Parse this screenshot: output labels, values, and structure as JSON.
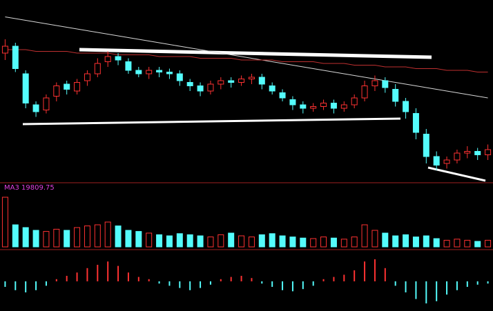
{
  "chart_data": {
    "type": "candlestick",
    "open": [
      74,
      78,
      62,
      44,
      41,
      49,
      56,
      52,
      58,
      62,
      69,
      72,
      69,
      64,
      62,
      64,
      63,
      62,
      57,
      55,
      52,
      56,
      58,
      57,
      59,
      60,
      55,
      51,
      47,
      44,
      42,
      43,
      45,
      42,
      44,
      48,
      55,
      58,
      53,
      46,
      39,
      27,
      14,
      10,
      12,
      16,
      17,
      15
    ],
    "close": [
      78,
      65,
      45,
      40,
      48,
      55,
      53,
      57,
      62,
      68,
      72,
      70,
      64,
      62,
      64,
      63,
      62,
      58,
      55,
      52,
      56,
      58,
      57,
      59,
      60,
      56,
      52,
      48,
      44,
      42,
      43,
      45,
      42,
      44,
      48,
      55,
      58,
      54,
      46,
      40,
      28,
      14,
      9,
      12,
      16,
      17,
      15,
      18
    ],
    "high": [
      82,
      80,
      64,
      46,
      50,
      57,
      58,
      59,
      64,
      71,
      75,
      74,
      71,
      66,
      66,
      66,
      65,
      64,
      59,
      57,
      58,
      60,
      60,
      61,
      62,
      62,
      57,
      53,
      49,
      46,
      45,
      47,
      47,
      46,
      50,
      58,
      61,
      60,
      56,
      48,
      42,
      30,
      17,
      14,
      18,
      20,
      19,
      21
    ],
    "low": [
      70,
      63,
      42,
      37,
      39,
      46,
      50,
      50,
      55,
      60,
      66,
      67,
      62,
      60,
      59,
      60,
      59,
      55,
      52,
      49,
      50,
      53,
      54,
      55,
      56,
      53,
      50,
      46,
      41,
      39,
      40,
      41,
      39,
      40,
      42,
      46,
      52,
      51,
      43,
      36,
      24,
      10,
      6,
      7,
      10,
      13,
      12,
      12
    ],
    "ylim": [
      0,
      100
    ],
    "up_color": "#ff3232",
    "down_color": "#54fcfc",
    "series": [
      {
        "color": "#d8d8d8",
        "values": [
          95,
          94,
          93,
          92,
          91,
          90,
          89,
          88,
          87,
          86,
          85,
          84,
          83,
          82,
          81,
          80,
          79,
          78,
          77,
          76,
          75,
          74,
          73,
          72,
          71,
          70,
          69,
          68,
          67,
          66,
          65,
          64,
          63,
          62,
          61,
          60,
          59,
          58,
          57,
          56,
          55,
          54,
          53,
          52,
          51,
          50,
          49,
          48
        ]
      },
      {
        "color": "#c03030",
        "values": [
          76,
          76,
          76,
          75,
          75,
          75,
          75,
          74,
          74,
          74,
          74,
          73,
          73,
          73,
          73,
          72,
          72,
          72,
          72,
          71,
          71,
          71,
          71,
          70,
          70,
          70,
          70,
          69,
          69,
          69,
          69,
          68,
          68,
          68,
          67,
          67,
          67,
          66,
          66,
          66,
          65,
          65,
          65,
          64,
          64,
          64,
          63,
          63
        ]
      }
    ],
    "volume_label": "MA3 19809.75",
    "volume": [
      90,
      40,
      35,
      30,
      28,
      32,
      30,
      35,
      38,
      40,
      45,
      38,
      30,
      28,
      25,
      22,
      20,
      24,
      22,
      20,
      18,
      22,
      25,
      20,
      18,
      22,
      24,
      20,
      18,
      16,
      15,
      18,
      16,
      14,
      18,
      40,
      30,
      25,
      20,
      22,
      18,
      20,
      15,
      12,
      14,
      12,
      10,
      12
    ],
    "volume_ylim": [
      0,
      100
    ],
    "macd": [
      -5,
      -8,
      -10,
      -8,
      -4,
      2,
      5,
      8,
      12,
      15,
      18,
      14,
      8,
      4,
      2,
      -2,
      -4,
      -6,
      -8,
      -6,
      -3,
      2,
      4,
      5,
      3,
      -2,
      -5,
      -8,
      -9,
      -7,
      -4,
      2,
      4,
      6,
      10,
      18,
      20,
      12,
      -4,
      -10,
      -16,
      -20,
      -18,
      -12,
      -8,
      -5,
      -3,
      -2
    ],
    "macd_ylim": [
      -25,
      25
    ]
  }
}
